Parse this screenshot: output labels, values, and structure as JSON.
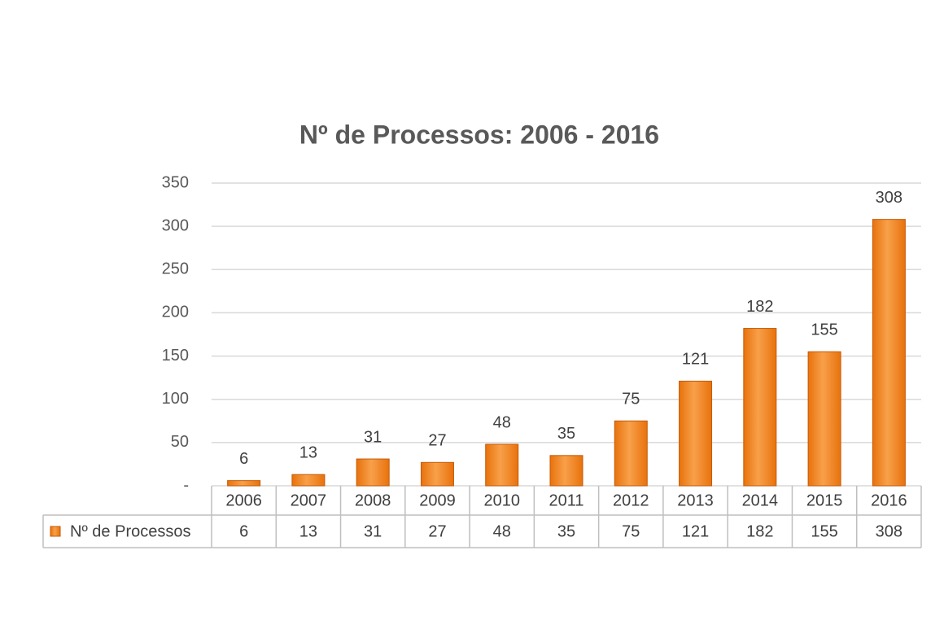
{
  "chart_data": {
    "type": "bar",
    "title": "Nº de Processos: 2006 - 2016",
    "categories": [
      "2006",
      "2007",
      "2008",
      "2009",
      "2010",
      "2011",
      "2012",
      "2013",
      "2014",
      "2015",
      "2016"
    ],
    "series": [
      {
        "name": "Nº de Processos",
        "color": "#e8720c",
        "values": [
          6,
          13,
          31,
          27,
          48,
          35,
          75,
          121,
          182,
          155,
          308
        ]
      }
    ],
    "ylim": [
      0,
      350
    ],
    "yticks": [
      {
        "value": 0,
        "label": "-"
      },
      50,
      100,
      150,
      200,
      250,
      300,
      350
    ],
    "grid": true,
    "data_labels": true,
    "data_table": true
  }
}
